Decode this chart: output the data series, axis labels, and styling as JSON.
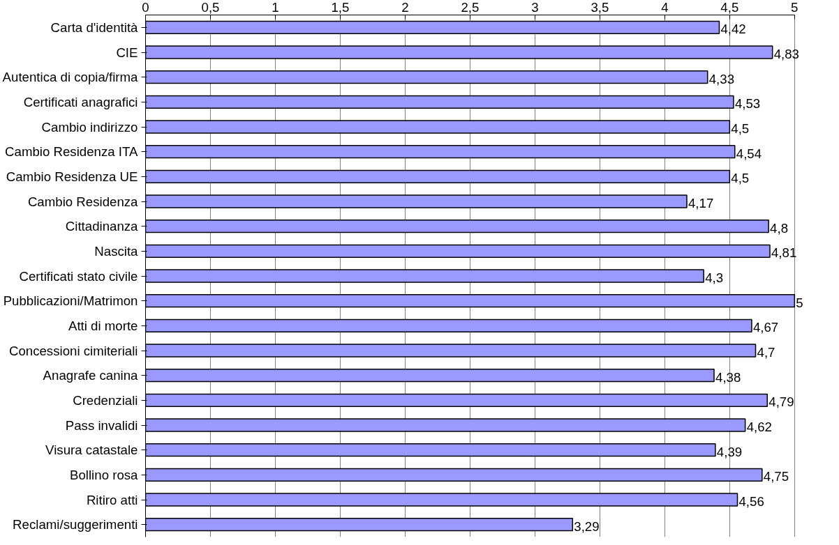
{
  "chart_data": {
    "type": "bar",
    "orientation": "horizontal",
    "categories": [
      "Carta d'identità",
      "CIE",
      "Autentica di copia/firma",
      "Certificati anagrafici",
      "Cambio indirizzo",
      "Cambio Residenza ITA",
      "Cambio Residenza UE",
      "Cambio Residenza",
      "Cittadinanza",
      "Nascita",
      "Certificati stato civile",
      "Pubblicazioni/Matrimon",
      "Atti di morte",
      "Concessioni cimiteriali",
      "Anagrafe canina",
      "Credenziali",
      "Pass invalidi",
      "Visura catastale",
      "Bollino rosa",
      "Ritiro atti",
      "Reclami/suggerimenti"
    ],
    "values": [
      4.42,
      4.83,
      4.33,
      4.53,
      4.5,
      4.54,
      4.5,
      4.17,
      4.8,
      4.81,
      4.3,
      5,
      4.67,
      4.7,
      4.38,
      4.79,
      4.62,
      4.39,
      4.75,
      4.56,
      3.29
    ],
    "color": "#9999ff",
    "xlim": [
      0,
      5
    ],
    "xticks": [
      0,
      {
        "value": 0.5,
        "label": "0,5"
      },
      1,
      {
        "value": 1.5,
        "label": "1,5"
      },
      2,
      {
        "value": 2.5,
        "label": "2,5"
      },
      3,
      {
        "value": 3.5,
        "label": "3,5"
      },
      4,
      {
        "value": 4.5,
        "label": "4,5"
      },
      5
    ],
    "value_labels": [
      "4,42",
      "4,83",
      "4,33",
      "4,53",
      "4,5",
      "4,54",
      "4,5",
      "4,17",
      "4,8",
      "4,81",
      "4,3",
      "5",
      "4,67",
      "4,7",
      "4,38",
      "4,79",
      "4,62",
      "4,39",
      "4,75",
      "4,56",
      "3,29"
    ],
    "grid": "x"
  }
}
